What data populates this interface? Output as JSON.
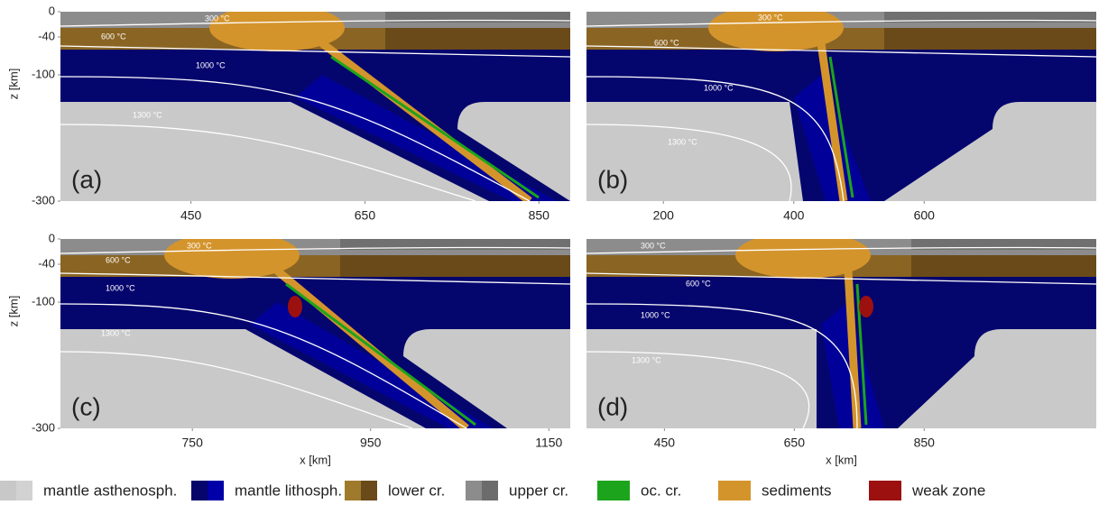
{
  "chart_data": [
    {
      "type": "section",
      "title": "(a)",
      "ylabel": "z [km]",
      "xlim": [
        300,
        886
      ],
      "xticks": [
        450,
        650,
        850
      ],
      "ylim": [
        -300,
        0
      ],
      "yticks": [
        0,
        -40,
        -100,
        -300
      ],
      "annotations": [
        "300 °C",
        "600 °C",
        "1000 °C",
        "1300 °C"
      ]
    },
    {
      "type": "section",
      "title": "(b)",
      "xlim": [
        82,
        864
      ],
      "xticks": [
        200,
        400,
        600
      ],
      "annotations": [
        "300 °C",
        "600 °C",
        "1000 °C",
        "1300 °C"
      ]
    },
    {
      "type": "section",
      "title": "(c)",
      "ylabel": "z [km]",
      "xlabel": "x [km]",
      "xlim": [
        602,
        1174
      ],
      "xticks": [
        750,
        950,
        1150
      ],
      "ylim": [
        -300,
        0
      ],
      "yticks": [
        0,
        -40,
        -100,
        -300
      ],
      "annotations": [
        "300 °C",
        "600 °C",
        "1000 °C",
        "1300 °C"
      ]
    },
    {
      "type": "section",
      "title": "(d)",
      "xlabel": "x [km]",
      "xlim": [
        330,
        1115
      ],
      "xticks": [
        450,
        650,
        850
      ],
      "annotations": [
        "300 °C",
        "600 °C",
        "1000 °C",
        "1300 °C"
      ]
    }
  ],
  "legend": [
    {
      "name": "mantle asthenosph.",
      "colors": [
        "#c8c8c8",
        "#d2d2d2"
      ]
    },
    {
      "name": "mantle lithosph.",
      "colors": [
        "#06066a",
        "#0000a8"
      ]
    },
    {
      "name": "lower cr.",
      "colors": [
        "#a07a2c",
        "#6a4a18"
      ]
    },
    {
      "name": "upper cr.",
      "colors": [
        "#8c8c8c",
        "#6c6c6c"
      ]
    },
    {
      "name": "oc. cr.",
      "colors": [
        "#1ca41c"
      ]
    },
    {
      "name": "sediments",
      "colors": [
        "#d4942c"
      ]
    },
    {
      "name": "weak zone",
      "colors": [
        "#9c1010"
      ]
    }
  ]
}
